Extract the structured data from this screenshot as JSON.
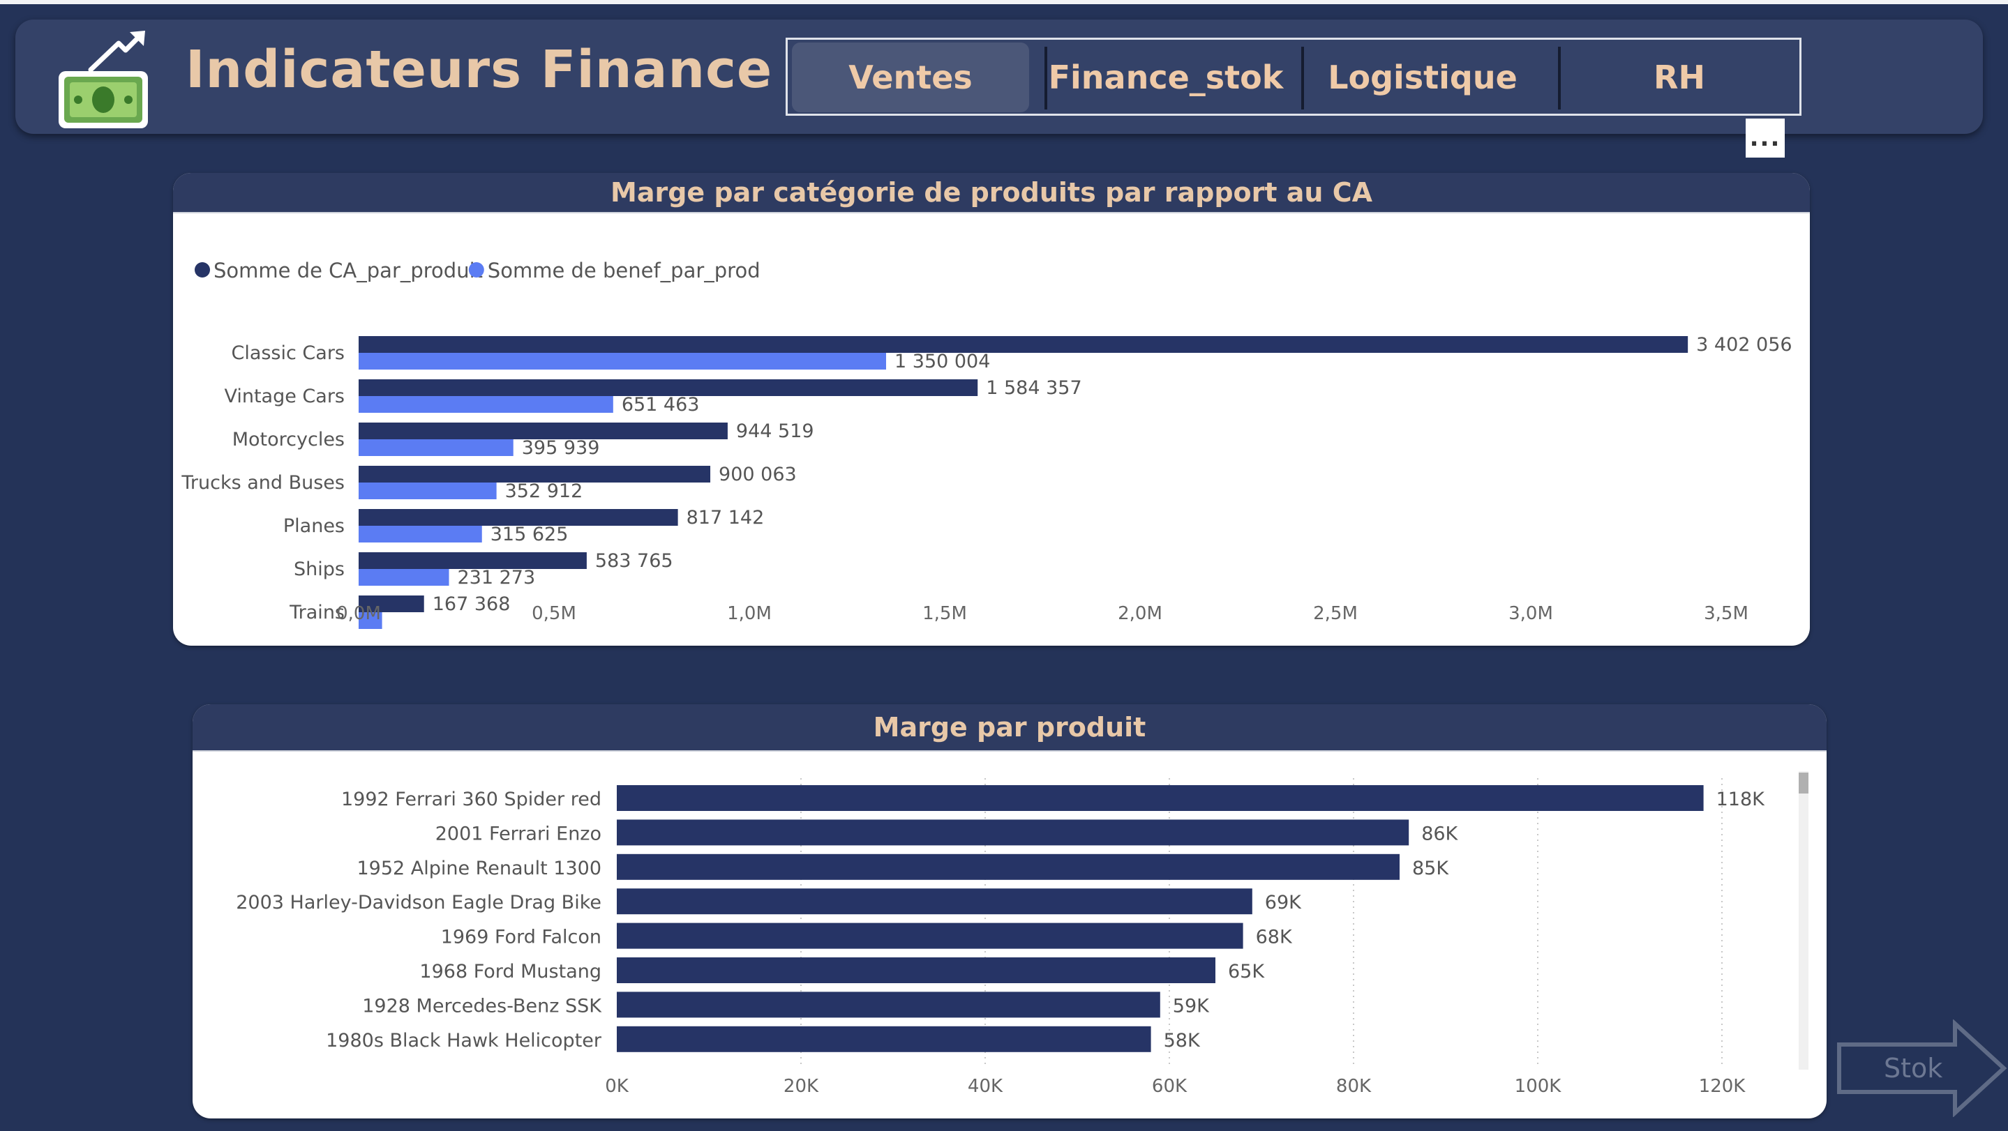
{
  "header": {
    "title": "Indicateurs Finance",
    "tabs": [
      {
        "label": "Ventes",
        "active": true
      },
      {
        "label": "Finance_stok",
        "active": false
      },
      {
        "label": "Logistique",
        "active": false
      },
      {
        "label": "RH",
        "active": false
      }
    ],
    "more_label": "..."
  },
  "nav": {
    "next_label": "Stok"
  },
  "colors": {
    "page_bg": "#243358",
    "title_text": "#e8c8a8",
    "series_dark": "#263466",
    "series_light": "#5b7cf3"
  },
  "chart_data": [
    {
      "type": "bar",
      "orientation": "horizontal",
      "title": "Marge par catégorie de produits par rapport au CA",
      "categories": [
        "Classic Cars",
        "Vintage Cars",
        "Motorcycles",
        "Trucks and Buses",
        "Planes",
        "Ships",
        "Trains"
      ],
      "series": [
        {
          "name": "Somme de CA_par_produit",
          "values": [
            3402056,
            1584357,
            944519,
            900063,
            817142,
            583765,
            167368
          ],
          "labels": [
            "3 402 056",
            "1 584 357",
            "944 519",
            "900 063",
            "817 142",
            "583 765",
            "167 368"
          ],
          "color": "#263466"
        },
        {
          "name": "Somme de benef_par_prod",
          "values": [
            1350004,
            651463,
            395939,
            352912,
            315625,
            231273,
            60000
          ],
          "labels": [
            "1 350 004",
            "651 463",
            "395 939",
            "352 912",
            "315 625",
            "231 273",
            ""
          ],
          "color": "#5b7cf3"
        }
      ],
      "xlim": [
        0,
        3500000
      ],
      "xticks": [
        "0,0M",
        "0,5M",
        "1,0M",
        "1,5M",
        "2,0M",
        "2,5M",
        "3,0M",
        "3,5M"
      ],
      "legend": "top-left",
      "grid": false
    },
    {
      "type": "bar",
      "orientation": "horizontal",
      "title": "Marge par produit",
      "categories": [
        "1992 Ferrari 360 Spider red",
        "2001 Ferrari Enzo",
        "1952 Alpine Renault 1300",
        "2003 Harley-Davidson Eagle Drag Bike",
        "1969 Ford Falcon",
        "1968 Ford Mustang",
        "1928 Mercedes-Benz SSK",
        "1980s Black Hawk Helicopter"
      ],
      "series": [
        {
          "values": [
            118000,
            86000,
            85000,
            69000,
            68000,
            65000,
            59000,
            58000
          ],
          "labels": [
            "118K",
            "86K",
            "85K",
            "69K",
            "68K",
            "65K",
            "59K",
            "58K"
          ],
          "color": "#263466"
        }
      ],
      "xlim": [
        0,
        120000
      ],
      "xticks": [
        "0K",
        "20K",
        "40K",
        "60K",
        "80K",
        "100K",
        "120K"
      ],
      "grid": true
    }
  ]
}
